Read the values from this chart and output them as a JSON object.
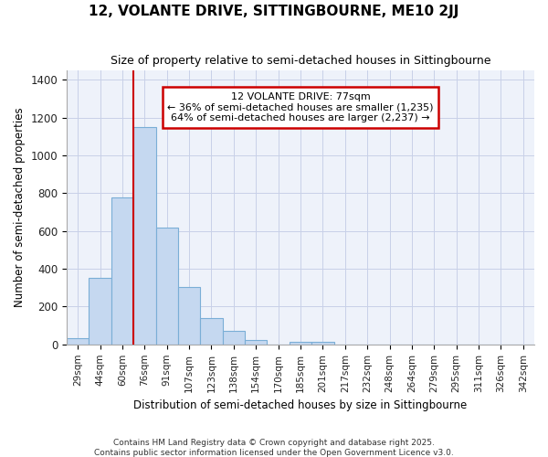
{
  "title": "12, VOLANTE DRIVE, SITTINGBOURNE, ME10 2JJ",
  "subtitle": "Size of property relative to semi-detached houses in Sittingbourne",
  "xlabel": "Distribution of semi-detached houses by size in Sittingbourne",
  "ylabel": "Number of semi-detached properties",
  "categories": [
    "29sqm",
    "44sqm",
    "60sqm",
    "76sqm",
    "91sqm",
    "107sqm",
    "123sqm",
    "138sqm",
    "154sqm",
    "170sqm",
    "185sqm",
    "201sqm",
    "217sqm",
    "232sqm",
    "248sqm",
    "264sqm",
    "279sqm",
    "295sqm",
    "311sqm",
    "326sqm",
    "342sqm"
  ],
  "values": [
    35,
    350,
    780,
    1150,
    620,
    305,
    140,
    70,
    25,
    0,
    15,
    15,
    0,
    0,
    0,
    0,
    0,
    0,
    0,
    0,
    0
  ],
  "bar_color": "#c5d8f0",
  "bar_edge_color": "#7aaed6",
  "annotation_title": "12 VOLANTE DRIVE: 77sqm",
  "annotation_line1": "← 36% of semi-detached houses are smaller (1,235)",
  "annotation_line2": "64% of semi-detached houses are larger (2,237) →",
  "red_line_index": 3,
  "ylim": [
    0,
    1450
  ],
  "yticks": [
    0,
    200,
    400,
    600,
    800,
    1000,
    1200,
    1400
  ],
  "footer1": "Contains HM Land Registry data © Crown copyright and database right 2025.",
  "footer2": "Contains public sector information licensed under the Open Government Licence v3.0.",
  "bg_color": "#ffffff",
  "plot_bg_color": "#eef2fa",
  "grid_color": "#c8d0e8",
  "annotation_box_color": "#ffffff",
  "annotation_box_edge": "#cc0000",
  "red_line_color": "#cc0000",
  "title_fontsize": 11,
  "subtitle_fontsize": 9
}
